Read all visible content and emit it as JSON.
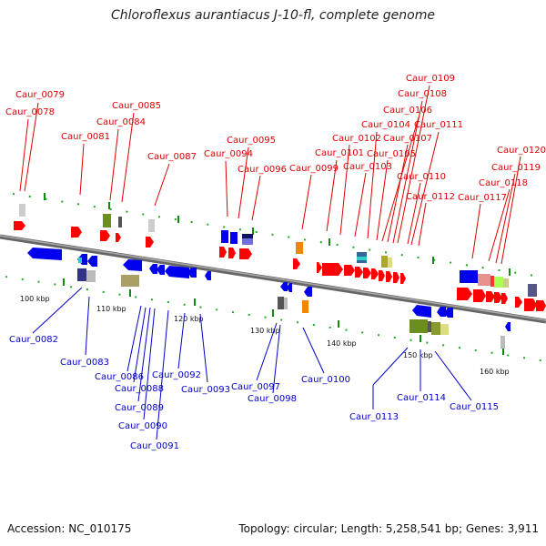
{
  "title": "Chloroflexus aurantiacus J-10-fl, complete genome",
  "footer": {
    "accession": "Accession: NC_010175",
    "summary": "Topology: circular; Length: 5,258,541 bp; Genes: 3,911"
  },
  "colors": {
    "forward_label": "#dd0000",
    "reverse_label": "#0000cc",
    "forward_gene": "#ff0000",
    "reverse_gene": "#0000ee",
    "backbone": "#888888",
    "tick": "#22aa22"
  },
  "scale_labels": [
    "100 kbp",
    "110 kbp",
    "120 kbp",
    "130 kbp",
    "140 kbp",
    "150 kbp",
    "160 kbp"
  ],
  "forward_genes": [
    "Caur_0078",
    "Caur_0079",
    "Caur_0081",
    "Caur_0084",
    "Caur_0085",
    "Caur_0087",
    "Caur_0094",
    "Caur_0095",
    "Caur_0096",
    "Caur_0099",
    "Caur_0101",
    "Caur_0102",
    "Caur_0103",
    "Caur_0104",
    "Caur_0105",
    "Caur_0106",
    "Caur_0107",
    "Caur_0108",
    "Caur_0109",
    "Caur_0110",
    "Caur_0111",
    "Caur_0112",
    "Caur_0117",
    "Caur_0118",
    "Caur_0119",
    "Caur_0120"
  ],
  "reverse_genes": [
    "Caur_0082",
    "Caur_0083",
    "Caur_0086",
    "Caur_0088",
    "Caur_0089",
    "Caur_0090",
    "Caur_0091",
    "Caur_0092",
    "Caur_0093",
    "Caur_0097",
    "Caur_0098",
    "Caur_0100",
    "Caur_0113",
    "Caur_0114",
    "Caur_0115"
  ]
}
